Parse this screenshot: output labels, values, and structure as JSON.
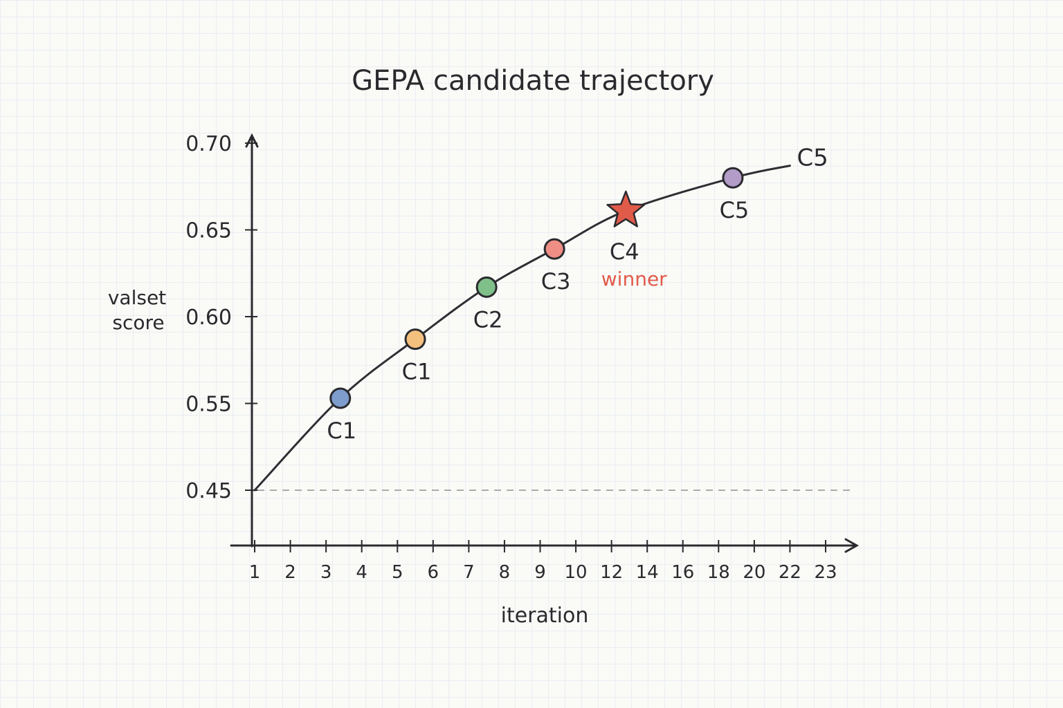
{
  "chart_data": {
    "type": "line",
    "title": "GEPA candidate trajectory",
    "xlabel": "iteration",
    "ylabel": "valset score",
    "x_ticks": [
      1,
      2,
      3,
      4,
      5,
      6,
      7,
      8,
      9,
      10,
      12,
      14,
      16,
      18,
      20,
      22,
      23
    ],
    "y_ticks": [
      "0.45",
      "0.55",
      "0.60",
      "0.65",
      "0.70"
    ],
    "ylim": [
      0.45,
      0.7
    ],
    "grid": false,
    "baseline": {
      "y": 0.45,
      "style": "dashed"
    },
    "line": {
      "x": [
        1,
        3.4,
        5.5,
        7.5,
        9.4,
        12.8,
        18.8,
        22
      ],
      "y": [
        0.45,
        0.553,
        0.587,
        0.617,
        0.639,
        0.661,
        0.68,
        0.687
      ]
    },
    "points": [
      {
        "label": "C1",
        "x": 3.4,
        "y": 0.553,
        "color": "#7e9ccc",
        "marker": "circle"
      },
      {
        "label": "C1",
        "x": 5.5,
        "y": 0.587,
        "color": "#f4c07e",
        "marker": "circle"
      },
      {
        "label": "C2",
        "x": 7.5,
        "y": 0.617,
        "color": "#7fbf8a",
        "marker": "circle"
      },
      {
        "label": "C3",
        "x": 9.4,
        "y": 0.639,
        "color": "#ee8e84",
        "marker": "circle"
      },
      {
        "label": "C4",
        "x": 12.8,
        "y": 0.661,
        "color": "#e15b4a",
        "marker": "star",
        "annotation": "winner",
        "annotation_color": "#e15b4a"
      },
      {
        "label": "C5",
        "x": 18.8,
        "y": 0.68,
        "color": "#b39cc8",
        "marker": "circle"
      }
    ],
    "end_label": "C5"
  }
}
